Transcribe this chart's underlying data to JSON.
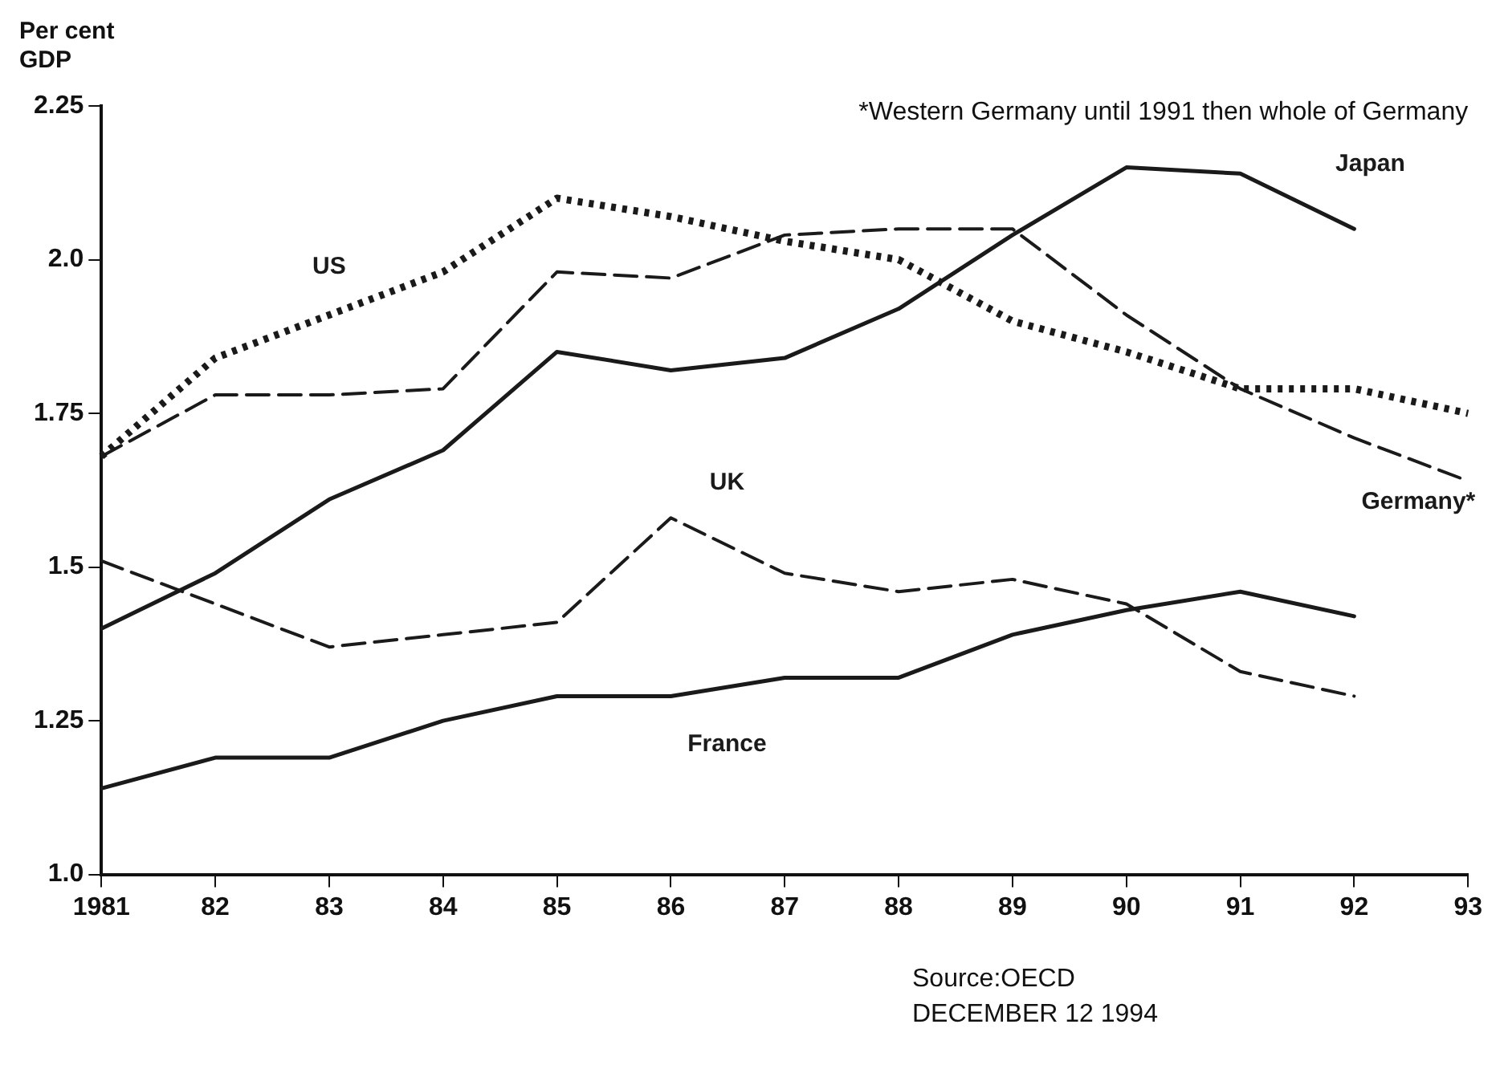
{
  "chart_data": {
    "type": "line",
    "ylabel": "Per cent\nGDP",
    "categories": [
      "1981",
      "82",
      "83",
      "84",
      "85",
      "86",
      "87",
      "88",
      "89",
      "90",
      "91",
      "92",
      "93"
    ],
    "series": [
      {
        "name": "US",
        "color": "#1a1a1a",
        "line_style": "dotted",
        "values": [
          1.68,
          1.84,
          1.91,
          1.98,
          2.1,
          2.07,
          2.03,
          2.0,
          1.9,
          1.85,
          1.79,
          1.79,
          1.75
        ]
      },
      {
        "name": "Germany*",
        "color": "#1a1a1a",
        "line_style": "dashed",
        "values": [
          1.68,
          1.78,
          1.78,
          1.79,
          1.98,
          1.97,
          2.04,
          2.05,
          2.05,
          1.91,
          1.79,
          1.71,
          1.64
        ]
      },
      {
        "name": "Japan",
        "color": "#1a1a1a",
        "line_style": "solid",
        "values": [
          1.4,
          1.49,
          1.61,
          1.69,
          1.85,
          1.82,
          1.84,
          1.92,
          2.04,
          2.15,
          2.14,
          2.05,
          null
        ]
      },
      {
        "name": "UK",
        "color": "#1a1a1a",
        "line_style": "dashed",
        "values": [
          1.51,
          1.44,
          1.37,
          1.39,
          1.41,
          1.58,
          1.49,
          1.46,
          1.48,
          1.44,
          1.33,
          1.29,
          null
        ]
      },
      {
        "name": "France",
        "color": "#1a1a1a",
        "line_style": "solid",
        "values": [
          1.14,
          1.19,
          1.19,
          1.25,
          1.29,
          1.29,
          1.32,
          1.32,
          1.39,
          1.43,
          1.46,
          1.42,
          null
        ]
      }
    ],
    "ylim": [
      1.0,
      2.25
    ],
    "yticks": [
      {
        "value": 1.0,
        "label": "1.0"
      },
      1.25,
      {
        "value": 1.5,
        "label": "1.5"
      },
      1.75,
      {
        "value": 2.0,
        "label": "2.0"
      },
      2.25
    ],
    "grid": false,
    "legend": false,
    "marker": "none",
    "annotations": [
      "*Western Germany until 1991 then whole of Germany",
      "Source:OECD",
      "DECEMBER 12 1994"
    ]
  }
}
